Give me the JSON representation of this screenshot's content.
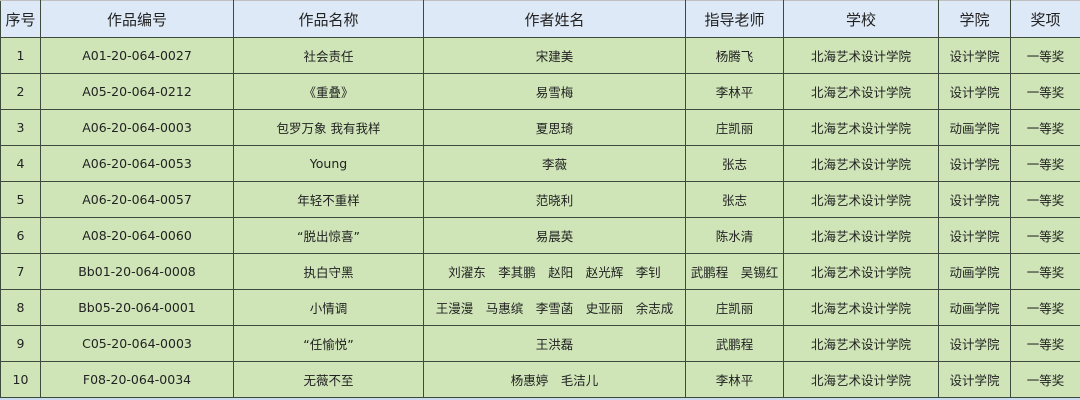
{
  "table": {
    "headers": [
      "序号",
      "作品编号",
      "作品名称",
      "作者姓名",
      "指导老师",
      "学校",
      "学院",
      "奖项"
    ],
    "rows": [
      [
        "1",
        "A01-20-064-0027",
        "社会责任",
        "宋建美",
        "杨腾飞",
        "北海艺术设计学院",
        "设计学院",
        "一等奖"
      ],
      [
        "2",
        "A05-20-064-0212",
        "《重叠》",
        "易雪梅",
        "李林平",
        "北海艺术设计学院",
        "设计学院",
        "一等奖"
      ],
      [
        "3",
        "A06-20-064-0003",
        "包罗万象 我有我样",
        "夏思琦",
        "庄凯丽",
        "北海艺术设计学院",
        "动画学院",
        "一等奖"
      ],
      [
        "4",
        "A06-20-064-0053",
        "Young",
        "李薇",
        "张志",
        "北海艺术设计学院",
        "设计学院",
        "一等奖"
      ],
      [
        "5",
        "A06-20-064-0057",
        "年轻不重样",
        "范晓利",
        "张志",
        "北海艺术设计学院",
        "设计学院",
        "一等奖"
      ],
      [
        "6",
        "A08-20-064-0060",
        "“脱出惊喜”",
        "易晨英",
        "陈水清",
        "北海艺术设计学院",
        "设计学院",
        "一等奖"
      ],
      [
        "7",
        "Bb01-20-064-0008",
        "执白守黑",
        "刘濯东　李其鹏　赵阳　赵光辉　李钊",
        "武鹏程　吴锡红",
        "北海艺术设计学院",
        "动画学院",
        "一等奖"
      ],
      [
        "8",
        "Bb05-20-064-0001",
        "小情调",
        "王漫漫　马惠缤　李雪菡　史亚丽　余志成",
        "庄凯丽",
        "北海艺术设计学院",
        "动画学院",
        "一等奖"
      ],
      [
        "9",
        "C05-20-064-0003",
        "“任愉悦”",
        "王洪磊",
        "武鹏程",
        "北海艺术设计学院",
        "设计学院",
        "一等奖"
      ],
      [
        "10",
        "F08-20-064-0034",
        "无薇不至",
        "杨惠婷　毛洁儿",
        "李林平",
        "北海艺术设计学院",
        "设计学院",
        "一等奖"
      ]
    ]
  }
}
